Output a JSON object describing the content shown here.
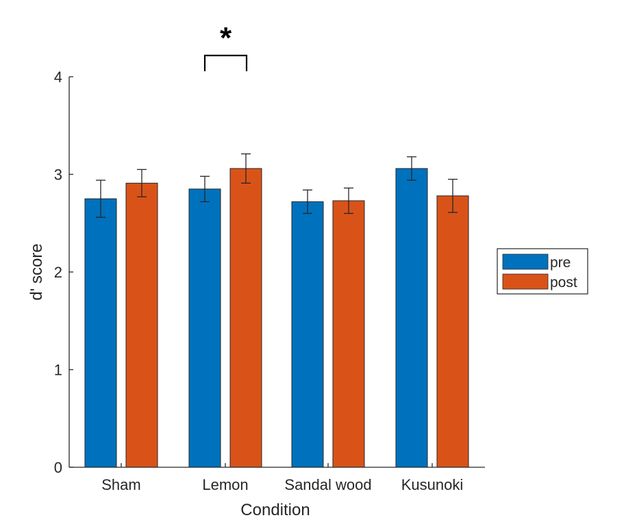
{
  "chart_data": {
    "type": "bar",
    "title": "",
    "xlabel": "Condition",
    "ylabel": "d' score",
    "ylim": [
      0,
      4
    ],
    "yticks": [
      "0",
      "1",
      "2",
      "3",
      "4"
    ],
    "categories": [
      "Sham",
      "Lemon",
      "Sandal wood",
      "Kusunoki"
    ],
    "series": [
      {
        "name": "pre",
        "color": "#0072BD",
        "values": [
          2.75,
          2.85,
          2.72,
          3.06
        ],
        "error": [
          0.19,
          0.13,
          0.12,
          0.12
        ]
      },
      {
        "name": "post",
        "color": "#D95319",
        "values": [
          2.91,
          3.06,
          2.73,
          2.78
        ],
        "error": [
          0.14,
          0.15,
          0.13,
          0.17
        ]
      }
    ],
    "legend_position": "right",
    "grid": false,
    "annotations": [
      {
        "text": "*",
        "category": "Lemon",
        "between": [
          "pre",
          "post"
        ]
      }
    ]
  }
}
